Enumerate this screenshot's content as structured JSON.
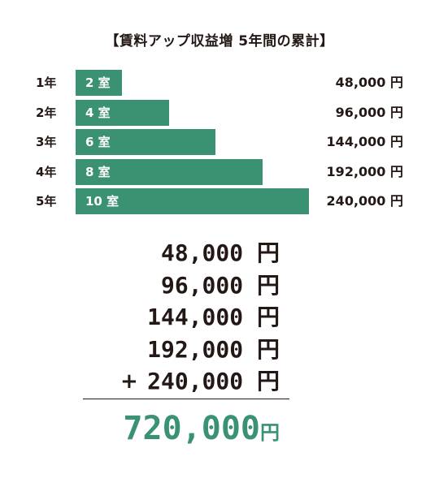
{
  "title": "【賃料アップ収益増 5年間の累計】",
  "colors": {
    "bar": "#3a9272",
    "total": "#3a9272",
    "text": "#231815"
  },
  "chart_data": {
    "type": "bar",
    "orientation": "horizontal",
    "categories": [
      "1年",
      "2年",
      "3年",
      "4年",
      "5年"
    ],
    "bar_labels": [
      "2 室",
      "4 室",
      "6 室",
      "8 室",
      "10 室"
    ],
    "values": [
      48000,
      96000,
      144000,
      192000,
      240000
    ],
    "value_labels": [
      "48,000 円",
      "96,000 円",
      "144,000 円",
      "192,000 円",
      "240,000 円"
    ],
    "title": "【賃料アップ収益増 5年間の累計】"
  },
  "summation": {
    "lines": [
      "48,000 円",
      "96,000 円",
      "144,000 円",
      "192,000 円",
      "240,000 円"
    ],
    "operator": "+",
    "total_value": "720,000",
    "total_unit": "円"
  }
}
